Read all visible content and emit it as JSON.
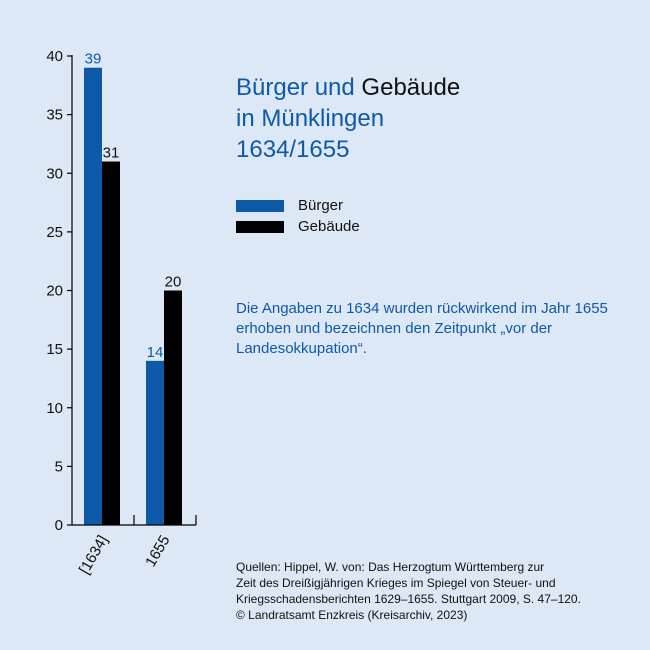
{
  "title": {
    "part1": "Bürger und ",
    "part2": "Gebäude",
    "line2": "in Münklingen",
    "line3": "1634/1655"
  },
  "note": "Die Angaben zu 1634 wurden rückwirkend im Jahr 1655 erhoben und bezeichnen den Zeitpunkt „vor der Landesokkupation“.",
  "sources": [
    "Quellen: Hippel, W. von: Das Herzogtum Württemberg zur",
    "Zeit des Dreißigjährigen Krieges im Spiegel von Steuer- und",
    "Kriegsschadensberichten 1629–1655. Stuttgart 2009, S. 47–120.",
    "© Landratsamt Enzkreis (Kreisarchiv, 2023)"
  ],
  "chart_data": {
    "type": "bar",
    "categories": [
      "[1634]",
      "1655"
    ],
    "series": [
      {
        "name": "Bürger",
        "values": [
          39,
          14
        ],
        "color": "#0f5aa8"
      },
      {
        "name": "Gebäude",
        "values": [
          31,
          20
        ],
        "color": "#000000"
      }
    ],
    "ylim": [
      0,
      40
    ],
    "yticks": [
      0,
      5,
      10,
      15,
      20,
      25,
      30,
      35,
      40
    ],
    "grid": false,
    "legend": "right"
  }
}
